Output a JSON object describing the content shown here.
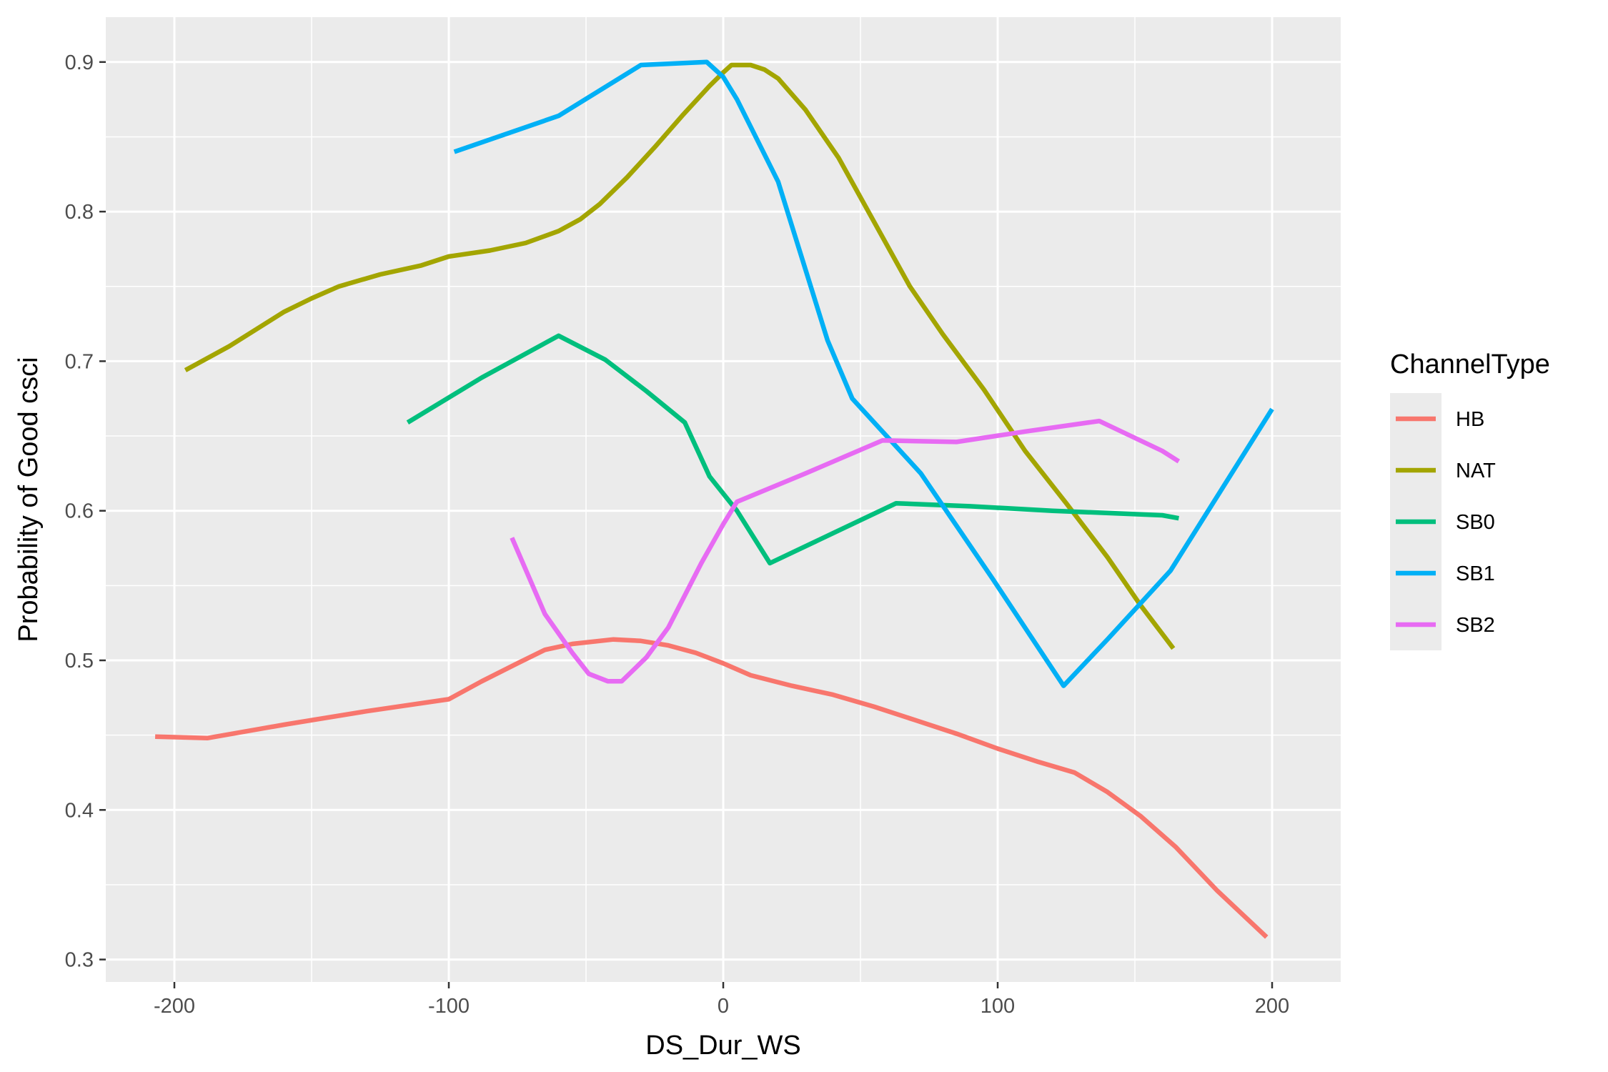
{
  "chart_data": {
    "type": "line",
    "xlabel": "DS_Dur_WS",
    "ylabel": "Probability of Good csci",
    "xlim": [
      -225,
      225
    ],
    "ylim": [
      0.285,
      0.93
    ],
    "x_ticks": [
      -200,
      -100,
      0,
      100,
      200
    ],
    "x_tick_labels": [
      "-200",
      "-100",
      "0",
      "100",
      "200"
    ],
    "y_ticks": [
      0.3,
      0.4,
      0.5,
      0.6,
      0.7,
      0.8,
      0.9
    ],
    "y_tick_labels": [
      "0.3",
      "0.4",
      "0.5",
      "0.6",
      "0.7",
      "0.8",
      "0.9"
    ],
    "grid": true,
    "legend": {
      "title": "ChannelType",
      "position": "right"
    },
    "series": [
      {
        "name": "HB",
        "color": "#F8766D",
        "points": [
          [
            -207,
            0.449
          ],
          [
            -188,
            0.448
          ],
          [
            -160,
            0.457
          ],
          [
            -130,
            0.466
          ],
          [
            -100,
            0.474
          ],
          [
            -88,
            0.486
          ],
          [
            -75,
            0.498
          ],
          [
            -65,
            0.507
          ],
          [
            -55,
            0.511
          ],
          [
            -40,
            0.514
          ],
          [
            -30,
            0.513
          ],
          [
            -20,
            0.51
          ],
          [
            -10,
            0.505
          ],
          [
            0,
            0.498
          ],
          [
            10,
            0.49
          ],
          [
            25,
            0.483
          ],
          [
            40,
            0.477
          ],
          [
            55,
            0.469
          ],
          [
            70,
            0.46
          ],
          [
            85,
            0.451
          ],
          [
            100,
            0.441
          ],
          [
            115,
            0.432
          ],
          [
            128,
            0.425
          ],
          [
            140,
            0.412
          ],
          [
            152,
            0.396
          ],
          [
            165,
            0.375
          ],
          [
            180,
            0.346
          ],
          [
            198,
            0.315
          ]
        ]
      },
      {
        "name": "NAT",
        "color": "#A3A500",
        "points": [
          [
            -196,
            0.694
          ],
          [
            -180,
            0.71
          ],
          [
            -160,
            0.733
          ],
          [
            -150,
            0.742
          ],
          [
            -140,
            0.75
          ],
          [
            -125,
            0.758
          ],
          [
            -110,
            0.764
          ],
          [
            -100,
            0.77
          ],
          [
            -85,
            0.774
          ],
          [
            -72,
            0.779
          ],
          [
            -60,
            0.787
          ],
          [
            -52,
            0.795
          ],
          [
            -45,
            0.805
          ],
          [
            -35,
            0.823
          ],
          [
            -25,
            0.843
          ],
          [
            -15,
            0.864
          ],
          [
            -5,
            0.884
          ],
          [
            0,
            0.893
          ],
          [
            3,
            0.898
          ],
          [
            10,
            0.898
          ],
          [
            15,
            0.895
          ],
          [
            20,
            0.889
          ],
          [
            30,
            0.868
          ],
          [
            42,
            0.836
          ],
          [
            55,
            0.793
          ],
          [
            68,
            0.75
          ],
          [
            80,
            0.718
          ],
          [
            95,
            0.681
          ],
          [
            110,
            0.64
          ],
          [
            125,
            0.605
          ],
          [
            140,
            0.569
          ],
          [
            152,
            0.537
          ],
          [
            164,
            0.508
          ]
        ]
      },
      {
        "name": "SB0",
        "color": "#00BF7D",
        "points": [
          [
            -115,
            0.659
          ],
          [
            -88,
            0.689
          ],
          [
            -60,
            0.717
          ],
          [
            -43,
            0.701
          ],
          [
            -28,
            0.68
          ],
          [
            -14,
            0.659
          ],
          [
            -5,
            0.623
          ],
          [
            5,
            0.6
          ],
          [
            17,
            0.565
          ],
          [
            40,
            0.585
          ],
          [
            63,
            0.605
          ],
          [
            90,
            0.603
          ],
          [
            120,
            0.6
          ],
          [
            160,
            0.597
          ],
          [
            166,
            0.595
          ]
        ]
      },
      {
        "name": "SB1",
        "color": "#00B0F6",
        "points": [
          [
            -98,
            0.84
          ],
          [
            -60,
            0.864
          ],
          [
            -30,
            0.898
          ],
          [
            -6,
            0.9
          ],
          [
            0,
            0.89
          ],
          [
            5,
            0.875
          ],
          [
            20,
            0.82
          ],
          [
            38,
            0.714
          ],
          [
            47,
            0.675
          ],
          [
            72,
            0.625
          ],
          [
            98,
            0.555
          ],
          [
            124,
            0.483
          ],
          [
            140,
            0.514
          ],
          [
            163,
            0.56
          ],
          [
            200,
            0.668
          ]
        ]
      },
      {
        "name": "SB2",
        "color": "#E76BF3",
        "points": [
          [
            -77,
            0.582
          ],
          [
            -65,
            0.531
          ],
          [
            -55,
            0.505
          ],
          [
            -49,
            0.491
          ],
          [
            -42,
            0.486
          ],
          [
            -37,
            0.486
          ],
          [
            -28,
            0.502
          ],
          [
            -20,
            0.522
          ],
          [
            -8,
            0.565
          ],
          [
            0,
            0.591
          ],
          [
            5,
            0.606
          ],
          [
            30,
            0.625
          ],
          [
            58,
            0.647
          ],
          [
            85,
            0.646
          ],
          [
            110,
            0.653
          ],
          [
            137,
            0.66
          ],
          [
            160,
            0.64
          ],
          [
            166,
            0.633
          ]
        ]
      }
    ]
  }
}
